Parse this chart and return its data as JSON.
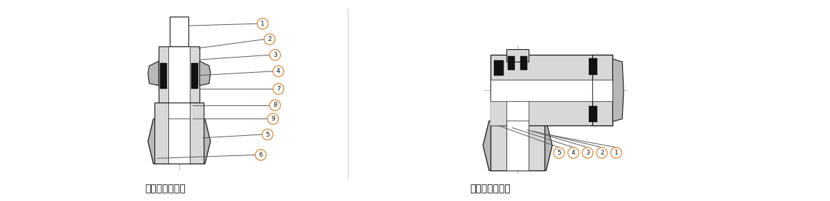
{
  "bg_color": "#ffffff",
  "label_left": "ハーフユニオン",
  "label_right": "エルボユニオン",
  "label_color": "#000000",
  "callout_circle_color": "#d4873a",
  "callout_line_color": "#555555",
  "gray_light": "#d8d8d8",
  "gray_mid": "#b8b8b8",
  "gray_dark": "#888888",
  "dark": "#111111",
  "white": "#ffffff",
  "grid_color": "#bbbbbb",
  "font_size_label": 10,
  "font_size_callout": 7,
  "fig_width": 11.98,
  "fig_height": 2.9,
  "dpi": 100
}
